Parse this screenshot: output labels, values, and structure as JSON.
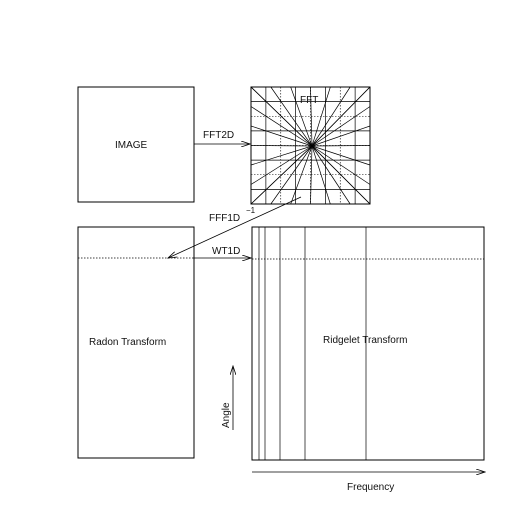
{
  "labels": {
    "image": "IMAGE",
    "fft": "FFT",
    "fft2d": "FFT2D",
    "fft1d_inverse": "FFF1D",
    "inverse_exponent": "−1",
    "wt1d": "WT1D",
    "radon": "Radon Transform",
    "ridgelet": "Ridgelet Transform",
    "angle": "Angle",
    "frequency": "Frequency"
  }
}
